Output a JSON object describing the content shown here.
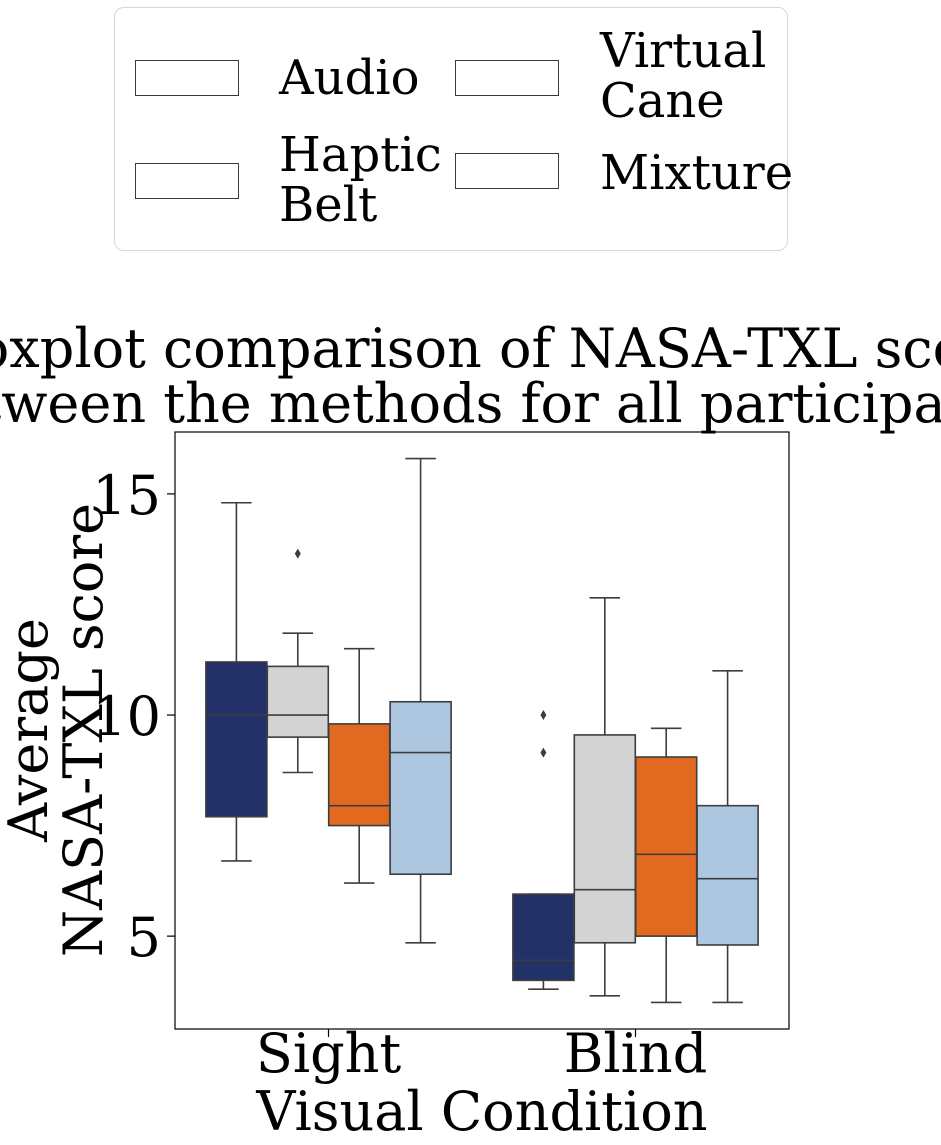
{
  "chart_data": {
    "type": "box",
    "title_lines": [
      "Boxplot comparison of NASA-TXL score",
      "between the methods for all participants."
    ],
    "xlabel": "Visual Condition",
    "ylabel_lines": [
      "Average",
      "NASA-TXL score"
    ],
    "ylim": [
      2.9,
      16.4
    ],
    "yticks": [
      5,
      10,
      15
    ],
    "categories": [
      "Sight",
      "Blind"
    ],
    "grid": false,
    "legend_position": "top-center, above plot",
    "series": [
      {
        "name": "Audio",
        "color": "#223268",
        "boxes": [
          {
            "whisker_low": 6.7,
            "q1": 7.7,
            "median": 10.0,
            "q3": 11.2,
            "whisker_high": 14.8,
            "outliers": []
          },
          {
            "whisker_low": 3.8,
            "q1": 4.0,
            "median": 4.45,
            "q3": 5.95,
            "whisker_high": 5.95,
            "outliers": [
              9.15,
              10.0
            ]
          }
        ]
      },
      {
        "name": "Haptic\nBelt",
        "color": "#d3d3d3",
        "boxes": [
          {
            "whisker_low": 8.7,
            "q1": 9.5,
            "median": 10.0,
            "q3": 11.1,
            "whisker_high": 11.85,
            "outliers": [
              13.65
            ]
          },
          {
            "whisker_low": 3.65,
            "q1": 4.85,
            "median": 6.05,
            "q3": 9.55,
            "whisker_high": 12.65,
            "outliers": []
          }
        ]
      },
      {
        "name": "Virtual\nCane",
        "color": "#e26a20",
        "boxes": [
          {
            "whisker_low": 6.2,
            "q1": 7.5,
            "median": 7.95,
            "q3": 9.8,
            "whisker_high": 11.5,
            "outliers": []
          },
          {
            "whisker_low": 3.5,
            "q1": 5.0,
            "median": 6.85,
            "q3": 9.05,
            "whisker_high": 9.7,
            "outliers": []
          }
        ]
      },
      {
        "name": "Mixture",
        "color": "#aec7e1",
        "boxes": [
          {
            "whisker_low": 4.85,
            "q1": 6.4,
            "median": 9.15,
            "q3": 10.3,
            "whisker_high": 15.8,
            "outliers": []
          },
          {
            "whisker_low": 3.5,
            "q1": 4.8,
            "median": 6.3,
            "q3": 7.95,
            "whisker_high": 11.0,
            "outliers": []
          }
        ]
      }
    ]
  }
}
